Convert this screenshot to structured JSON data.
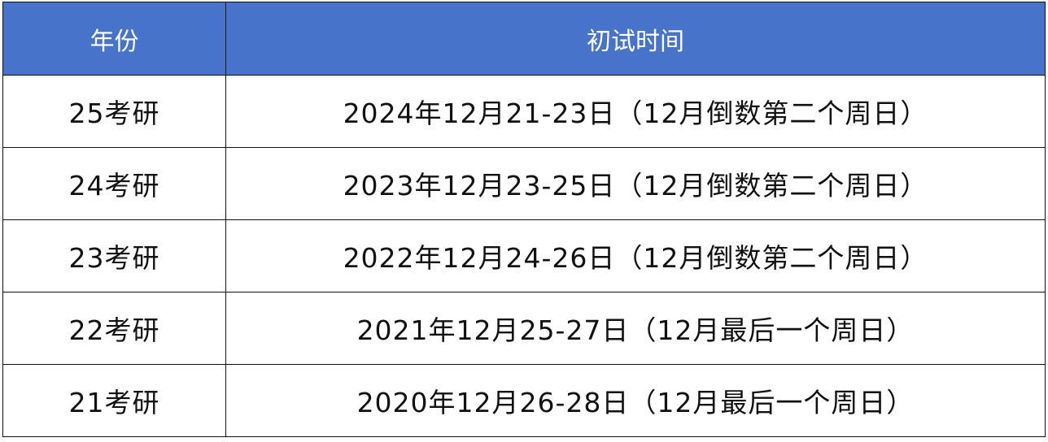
{
  "header": {
    "year": "年份",
    "exam_time": "初试时间"
  },
  "rows": [
    {
      "year": "25考研",
      "exam_time": "2024年12月21-23日（12月倒数第二个周日）"
    },
    {
      "year": "24考研",
      "exam_time": "2023年12月23-25日（12月倒数第二个周日）"
    },
    {
      "year": "23考研",
      "exam_time": "2022年12月24-26日（12月倒数第二个周日）"
    },
    {
      "year": "22考研",
      "exam_time": "2021年12月25-27日（12月最后一个周日）"
    },
    {
      "year": "21考研",
      "exam_time": "2020年12月26-28日（12月最后一个周日）"
    }
  ],
  "colors": {
    "header_bg": "#4774CA",
    "header_text": "#FFFFFF"
  }
}
